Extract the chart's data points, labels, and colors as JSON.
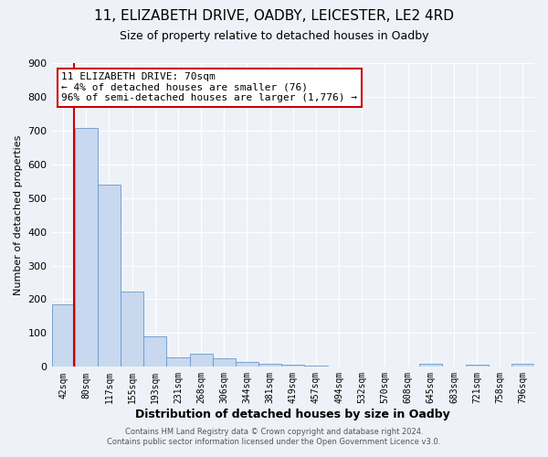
{
  "title1": "11, ELIZABETH DRIVE, OADBY, LEICESTER, LE2 4RD",
  "title2": "Size of property relative to detached houses in Oadby",
  "xlabel": "Distribution of detached houses by size in Oadby",
  "ylabel": "Number of detached properties",
  "categories": [
    "42sqm",
    "80sqm",
    "117sqm",
    "155sqm",
    "193sqm",
    "231sqm",
    "268sqm",
    "306sqm",
    "344sqm",
    "381sqm",
    "419sqm",
    "457sqm",
    "494sqm",
    "532sqm",
    "570sqm",
    "608sqm",
    "645sqm",
    "683sqm",
    "721sqm",
    "758sqm",
    "796sqm"
  ],
  "values": [
    185,
    707,
    540,
    222,
    90,
    28,
    40,
    25,
    15,
    10,
    5,
    4,
    2,
    1,
    0,
    0,
    8,
    0,
    5,
    0,
    8
  ],
  "bar_color": "#c8d8ee",
  "bar_edge_color": "#6699cc",
  "bar_width": 1.0,
  "ylim": [
    0,
    900
  ],
  "yticks": [
    0,
    100,
    200,
    300,
    400,
    500,
    600,
    700,
    800,
    900
  ],
  "annotation_title": "11 ELIZABETH DRIVE: 70sqm",
  "annotation_line1": "← 4% of detached houses are smaller (76)",
  "annotation_line2": "96% of semi-detached houses are larger (1,776) →",
  "annotation_box_color": "#ffffff",
  "annotation_box_edge": "#cc0000",
  "vline_color": "#cc0000",
  "vline_x_index": 0.47,
  "footer1": "Contains HM Land Registry data © Crown copyright and database right 2024.",
  "footer2": "Contains public sector information licensed under the Open Government Licence v3.0.",
  "background_color": "#eef2f8",
  "grid_color": "#ffffff",
  "title1_fontsize": 11,
  "title2_fontsize": 9,
  "xlabel_fontsize": 9,
  "ylabel_fontsize": 8,
  "annot_fontsize": 8,
  "tick_fontsize": 7,
  "footer_fontsize": 6
}
